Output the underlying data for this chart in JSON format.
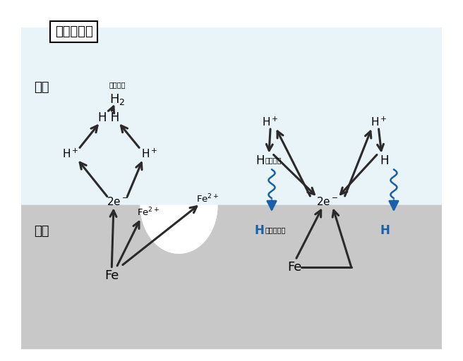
{
  "bg_color": "#ffffff",
  "water_color": "#e8f4f8",
  "steel_color": "#c8c8c8",
  "title_box_text": "使用環境下",
  "label_water": "水中",
  "label_steel": "銃材",
  "arrow_color": "#2a2a2a",
  "blue_color": "#1a5fa8",
  "text_suiso_gas": "水素ガス",
  "text_suiso_atom": "水素原子",
  "text_kochu": "銃中へ侵入"
}
